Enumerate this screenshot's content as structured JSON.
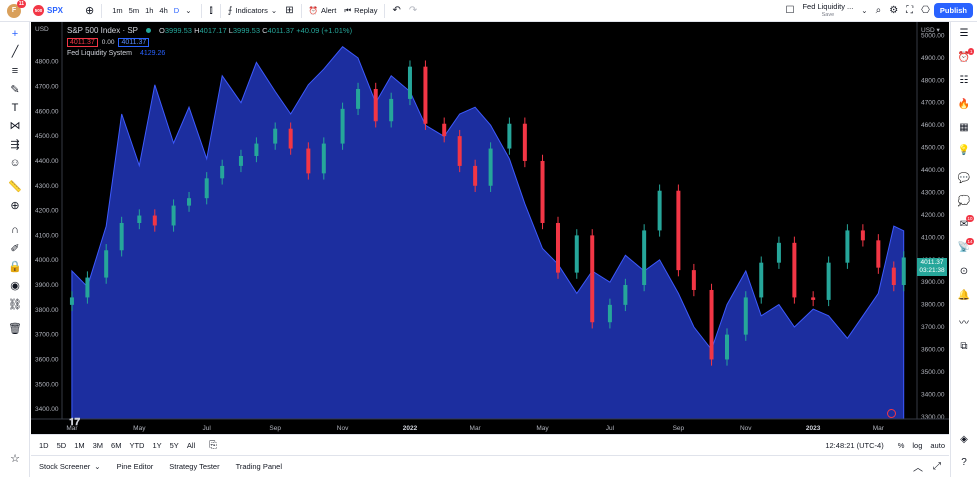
{
  "topbar": {
    "avatar_letter": "F",
    "avatar_badge": "11",
    "symbol_logo": "500",
    "symbol": "SPX",
    "intervals": [
      "1m",
      "5m",
      "1h",
      "4h",
      "D"
    ],
    "active_interval": "D",
    "indicators_label": "Indicators",
    "alert_label": "Alert",
    "replay_label": "Replay",
    "layout_name": "Fed Liquidity ...",
    "layout_status": "Save",
    "publish_label": "Publish"
  },
  "legend": {
    "title": "S&P 500 Index · SP",
    "open_label": "O",
    "open": "3999.53",
    "high_label": "H",
    "high": "4017.17",
    "low_label": "L",
    "low": "3999.53",
    "close_label": "C",
    "close": "4011.37",
    "change": "+40.09 (+1.01%)",
    "price_box_1": "4011.37",
    "price_box_mid": "0.00",
    "price_box_2": "4011.37",
    "indicator_name": "Fed Liquidity System",
    "indicator_value": "4129.26"
  },
  "axes": {
    "left_currency": "USD",
    "right_currency": "USD ▾",
    "current_price": "4011.37",
    "countdown": "03:21:38"
  },
  "bottombar": {
    "ranges": [
      "1D",
      "5D",
      "1M",
      "3M",
      "6M",
      "YTD",
      "1Y",
      "5Y",
      "All"
    ],
    "time": "12:48:21 (UTC-4)",
    "percent": "%",
    "log": "log",
    "auto": "auto"
  },
  "footer": {
    "tabs": [
      "Stock Screener",
      "Pine Editor",
      "Strategy Tester",
      "Trading Panel"
    ]
  },
  "colors": {
    "background": "#000000",
    "liquidity_fill": "#1e30a8",
    "candle_up": "#26a69a",
    "candle_down": "#f23645",
    "accent": "#2962ff"
  },
  "chart_data": {
    "type": "line",
    "left_axis": {
      "label": "USD",
      "ticks": [
        3400,
        3500,
        3600,
        3700,
        3800,
        3900,
        4000,
        4100,
        4200,
        4300,
        4400,
        4500,
        4600,
        4700,
        4800
      ],
      "range": [
        3360,
        4960
      ]
    },
    "right_axis": {
      "label": "USD",
      "ticks": [
        3300,
        3400,
        3500,
        3600,
        3700,
        3800,
        3900,
        4000,
        4100,
        4200,
        4300,
        4400,
        4500,
        4600,
        4700,
        4800,
        4900,
        5000
      ],
      "range": [
        3290,
        5060
      ]
    },
    "x_ticks": [
      "Mar",
      "May",
      "Jul",
      "Sep",
      "Nov",
      "2022",
      "Mar",
      "May",
      "Jul",
      "Sep",
      "Nov",
      "2023",
      "Mar"
    ],
    "series": [
      {
        "name": "Fed Liquidity System",
        "axis": "right",
        "style": "area",
        "points": [
          [
            "2021-03-01",
            3950
          ],
          [
            "2021-03-15",
            3880
          ],
          [
            "2021-04-01",
            4150
          ],
          [
            "2021-04-15",
            4650
          ],
          [
            "2021-05-01",
            4420
          ],
          [
            "2021-05-15",
            4780
          ],
          [
            "2021-06-01",
            4520
          ],
          [
            "2021-06-15",
            4680
          ],
          [
            "2021-07-01",
            4450
          ],
          [
            "2021-07-15",
            4820
          ],
          [
            "2021-08-01",
            4700
          ],
          [
            "2021-08-15",
            4880
          ],
          [
            "2021-09-01",
            4750
          ],
          [
            "2021-09-15",
            4650
          ],
          [
            "2021-10-01",
            4780
          ],
          [
            "2021-10-15",
            4850
          ],
          [
            "2021-11-01",
            4950
          ],
          [
            "2021-11-15",
            4900
          ],
          [
            "2021-12-01",
            4700
          ],
          [
            "2021-12-15",
            4820
          ],
          [
            "2022-01-01",
            4750
          ],
          [
            "2022-01-15",
            4600
          ],
          [
            "2022-02-01",
            4550
          ],
          [
            "2022-02-15",
            4650
          ],
          [
            "2022-03-01",
            4680
          ],
          [
            "2022-03-15",
            4600
          ],
          [
            "2022-04-01",
            4450
          ],
          [
            "2022-04-15",
            4250
          ],
          [
            "2022-05-01",
            4050
          ],
          [
            "2022-05-15",
            3980
          ],
          [
            "2022-06-01",
            3850
          ],
          [
            "2022-06-15",
            3950
          ],
          [
            "2022-07-01",
            3900
          ],
          [
            "2022-07-15",
            4020
          ],
          [
            "2022-08-01",
            3950
          ],
          [
            "2022-08-15",
            4000
          ],
          [
            "2022-09-01",
            3850
          ],
          [
            "2022-09-15",
            3700
          ],
          [
            "2022-10-01",
            3600
          ],
          [
            "2022-10-15",
            3800
          ],
          [
            "2022-11-01",
            3950
          ],
          [
            "2022-11-15",
            3750
          ],
          [
            "2022-12-01",
            3800
          ],
          [
            "2022-12-15",
            3700
          ],
          [
            "2023-01-01",
            3780
          ],
          [
            "2023-01-15",
            3750
          ],
          [
            "2023-02-01",
            3650
          ],
          [
            "2023-02-15",
            3750
          ],
          [
            "2023-03-01",
            3850
          ],
          [
            "2023-03-15",
            4150
          ],
          [
            "2023-03-24",
            4129
          ]
        ]
      },
      {
        "name": "S&P 500 Index",
        "axis": "left",
        "style": "candlestick",
        "points": [
          [
            "2021-03-01",
            3850
          ],
          [
            "2021-03-15",
            3930
          ],
          [
            "2021-04-01",
            4040
          ],
          [
            "2021-04-15",
            4150
          ],
          [
            "2021-05-01",
            4180
          ],
          [
            "2021-05-15",
            4140
          ],
          [
            "2021-06-01",
            4220
          ],
          [
            "2021-06-15",
            4250
          ],
          [
            "2021-07-01",
            4330
          ],
          [
            "2021-07-15",
            4380
          ],
          [
            "2021-08-01",
            4420
          ],
          [
            "2021-08-15",
            4470
          ],
          [
            "2021-09-01",
            4530
          ],
          [
            "2021-09-15",
            4450
          ],
          [
            "2021-10-01",
            4350
          ],
          [
            "2021-10-15",
            4470
          ],
          [
            "2021-11-01",
            4610
          ],
          [
            "2021-11-15",
            4690
          ],
          [
            "2021-12-01",
            4560
          ],
          [
            "2021-12-15",
            4650
          ],
          [
            "2022-01-01",
            4780
          ],
          [
            "2022-01-15",
            4550
          ],
          [
            "2022-02-01",
            4500
          ],
          [
            "2022-02-15",
            4380
          ],
          [
            "2022-03-01",
            4300
          ],
          [
            "2022-03-15",
            4450
          ],
          [
            "2022-04-01",
            4550
          ],
          [
            "2022-04-15",
            4400
          ],
          [
            "2022-05-01",
            4150
          ],
          [
            "2022-05-15",
            3950
          ],
          [
            "2022-06-01",
            4100
          ],
          [
            "2022-06-15",
            3750
          ],
          [
            "2022-07-01",
            3820
          ],
          [
            "2022-07-15",
            3900
          ],
          [
            "2022-08-01",
            4120
          ],
          [
            "2022-08-15",
            4280
          ],
          [
            "2022-09-01",
            3960
          ],
          [
            "2022-09-15",
            3880
          ],
          [
            "2022-10-01",
            3600
          ],
          [
            "2022-10-15",
            3700
          ],
          [
            "2022-11-01",
            3850
          ],
          [
            "2022-11-15",
            3990
          ],
          [
            "2022-12-01",
            4070
          ],
          [
            "2022-12-15",
            3850
          ],
          [
            "2023-01-01",
            3840
          ],
          [
            "2023-01-15",
            3990
          ],
          [
            "2023-02-01",
            4120
          ],
          [
            "2023-02-15",
            4080
          ],
          [
            "2023-03-01",
            3970
          ],
          [
            "2023-03-15",
            3900
          ],
          [
            "2023-03-24",
            4011
          ]
        ]
      }
    ]
  }
}
